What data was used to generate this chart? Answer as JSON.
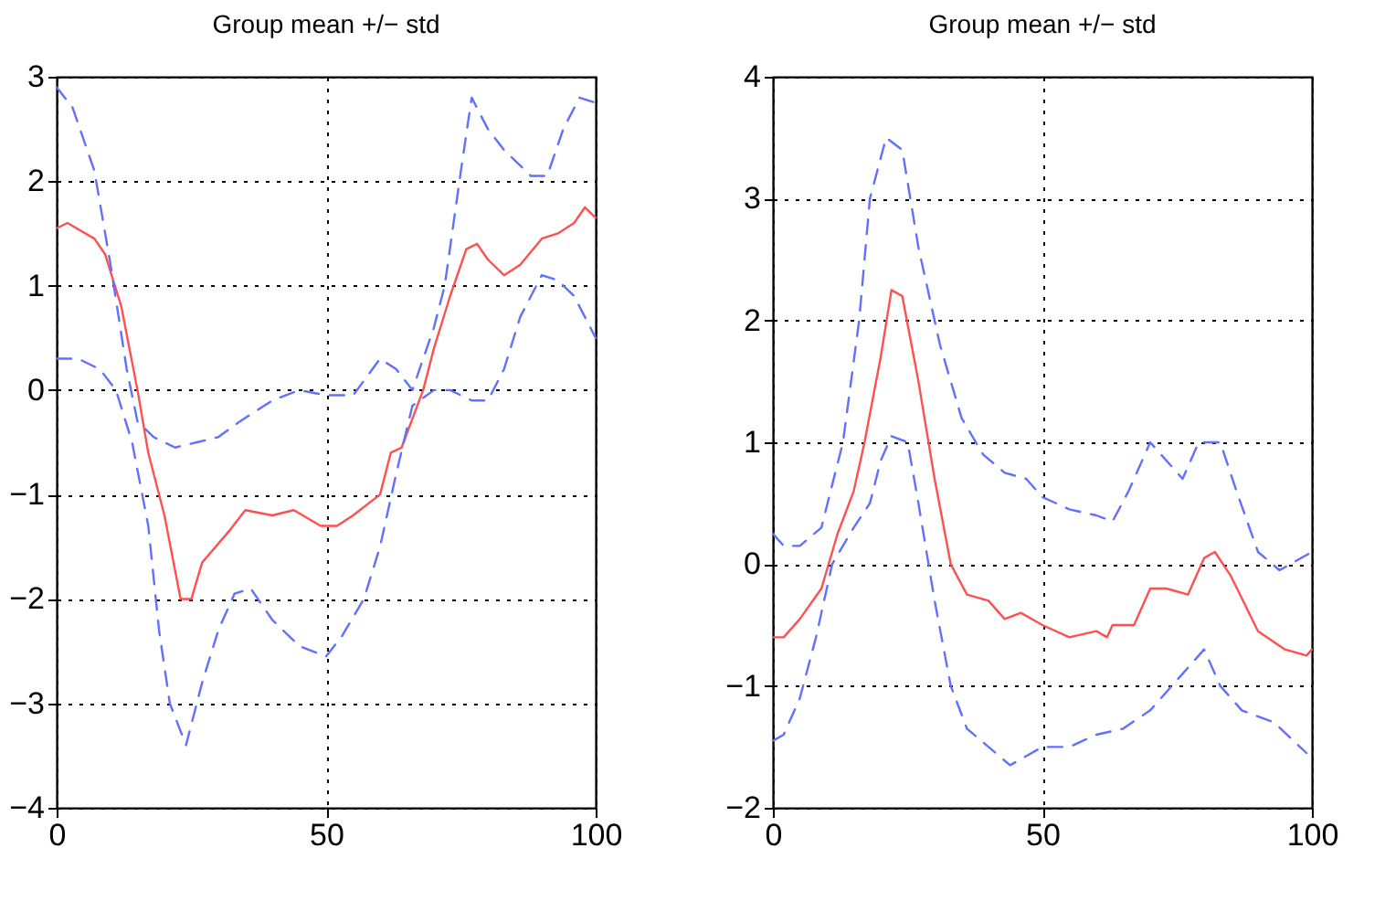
{
  "chart_data": [
    {
      "type": "line",
      "title": "Group mean +/− std",
      "xlim": [
        0,
        100
      ],
      "ylim": [
        -4,
        3
      ],
      "xticks": [
        0,
        50,
        100
      ],
      "yticks": [
        -4,
        -3,
        -2,
        -1,
        0,
        1,
        2,
        3
      ],
      "grid": true,
      "series": [
        {
          "color": "#ff5050",
          "line_style": "solid",
          "x": [
            0,
            2,
            7,
            9,
            12,
            15,
            17,
            20,
            23,
            25,
            27,
            32,
            35,
            40,
            44,
            49,
            52,
            55,
            60,
            62,
            64,
            68,
            70,
            73,
            76,
            78,
            80,
            83,
            86,
            90,
            93,
            96,
            98,
            100
          ],
          "values": [
            1.55,
            1.6,
            1.45,
            1.3,
            0.8,
            0.0,
            -0.6,
            -1.2,
            -2.0,
            -2.0,
            -1.65,
            -1.35,
            -1.15,
            -1.2,
            -1.15,
            -1.3,
            -1.3,
            -1.2,
            -1.0,
            -0.6,
            -0.55,
            0.0,
            0.4,
            0.9,
            1.35,
            1.4,
            1.25,
            1.1,
            1.2,
            1.45,
            1.5,
            1.6,
            1.75,
            1.65
          ]
        },
        {
          "color": "#6070ff",
          "line_style": "dashed",
          "x": [
            0,
            3,
            7,
            10,
            13,
            15,
            18,
            22,
            26,
            30,
            34,
            40,
            45,
            50,
            55,
            60,
            63,
            66,
            70,
            72,
            75,
            77,
            80,
            83,
            88,
            91,
            94,
            97,
            100
          ],
          "values": [
            2.9,
            2.7,
            2.1,
            1.2,
            0.2,
            -0.3,
            -0.45,
            -0.55,
            -0.5,
            -0.45,
            -0.3,
            -0.1,
            0.0,
            -0.05,
            -0.05,
            0.3,
            0.2,
            0.0,
            0.6,
            1.0,
            2.1,
            2.8,
            2.5,
            2.3,
            2.05,
            2.05,
            2.5,
            2.8,
            2.75
          ]
        },
        {
          "color": "#6070ff",
          "line_style": "dashed",
          "x": [
            0,
            4,
            8,
            11,
            14,
            17,
            19,
            21,
            24,
            27,
            30,
            33,
            36,
            40,
            45,
            50,
            53,
            57,
            60,
            63,
            66,
            70,
            73,
            77,
            80,
            83,
            86,
            90,
            93,
            96,
            100
          ],
          "values": [
            0.3,
            0.3,
            0.2,
            0.0,
            -0.5,
            -1.3,
            -2.3,
            -3.0,
            -3.4,
            -2.8,
            -2.3,
            -1.95,
            -1.9,
            -2.2,
            -2.45,
            -2.55,
            -2.35,
            -2.0,
            -1.5,
            -0.8,
            -0.15,
            0.0,
            0.0,
            -0.1,
            -0.1,
            0.2,
            0.7,
            1.1,
            1.05,
            0.9,
            0.5
          ]
        }
      ]
    },
    {
      "type": "line",
      "title": "Group mean +/− std",
      "xlim": [
        0,
        100
      ],
      "ylim": [
        -2,
        4
      ],
      "xticks": [
        0,
        50,
        100
      ],
      "yticks": [
        -2,
        -1,
        0,
        1,
        2,
        3,
        4
      ],
      "grid": true,
      "series": [
        {
          "color": "#ff5050",
          "line_style": "solid",
          "x": [
            0,
            2,
            5,
            9,
            12,
            15,
            17,
            20,
            22,
            24,
            27,
            30,
            33,
            36,
            40,
            43,
            46,
            50,
            55,
            60,
            62,
            63,
            67,
            70,
            73,
            77,
            80,
            82,
            85,
            90,
            95,
            99,
            100
          ],
          "values": [
            -0.6,
            -0.6,
            -0.45,
            -0.2,
            0.25,
            0.6,
            1.0,
            1.7,
            2.25,
            2.2,
            1.5,
            0.7,
            0.0,
            -0.25,
            -0.3,
            -0.45,
            -0.4,
            -0.5,
            -0.6,
            -0.55,
            -0.6,
            -0.5,
            -0.5,
            -0.2,
            -0.2,
            -0.25,
            0.05,
            0.1,
            -0.1,
            -0.55,
            -0.7,
            -0.75,
            -0.7
          ]
        },
        {
          "color": "#6070ff",
          "line_style": "dashed",
          "x": [
            0,
            2,
            5,
            9,
            13,
            16,
            18,
            21,
            24,
            27,
            31,
            35,
            39,
            43,
            47,
            50,
            55,
            60,
            63,
            66,
            70,
            73,
            76,
            79,
            83,
            86,
            90,
            94,
            100
          ],
          "values": [
            0.25,
            0.15,
            0.15,
            0.3,
            1.0,
            2.0,
            3.0,
            3.5,
            3.4,
            2.6,
            1.8,
            1.2,
            0.9,
            0.75,
            0.7,
            0.55,
            0.45,
            0.4,
            0.35,
            0.6,
            1.0,
            0.85,
            0.7,
            1.0,
            1.0,
            0.6,
            0.1,
            -0.05,
            0.1
          ]
        },
        {
          "color": "#6070ff",
          "line_style": "dashed",
          "x": [
            0,
            2,
            5,
            8,
            11,
            15,
            18,
            20,
            22,
            25,
            27,
            30,
            33,
            36,
            40,
            44,
            50,
            55,
            60,
            65,
            70,
            76,
            80,
            83,
            87,
            93,
            99
          ],
          "values": [
            -1.45,
            -1.4,
            -1.1,
            -0.6,
            0.0,
            0.3,
            0.5,
            0.85,
            1.05,
            1.0,
            0.5,
            -0.3,
            -1.0,
            -1.35,
            -1.5,
            -1.65,
            -1.5,
            -1.5,
            -1.4,
            -1.35,
            -1.2,
            -0.9,
            -0.7,
            -1.0,
            -1.2,
            -1.3,
            -1.55
          ]
        }
      ]
    }
  ]
}
